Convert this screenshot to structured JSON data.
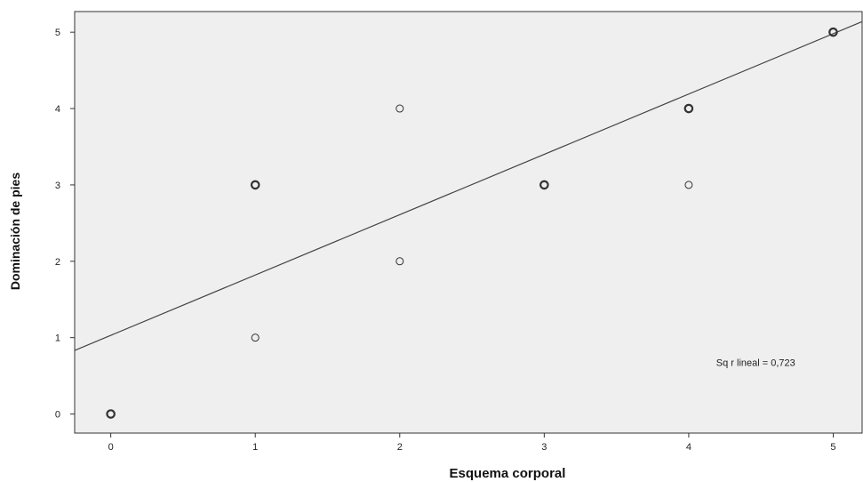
{
  "chart_data": {
    "type": "scatter",
    "xlabel": "Esquema corporal",
    "ylabel": "Dominación de pies",
    "xlim": [
      -0.25,
      5.2
    ],
    "ylim": [
      -0.25,
      5.27
    ],
    "x_ticks": [
      0,
      1,
      2,
      3,
      4,
      5
    ],
    "y_ticks": [
      0,
      1,
      2,
      3,
      4,
      5
    ],
    "grid": false,
    "points": [
      {
        "x": 0,
        "y": 0,
        "overlap": true
      },
      {
        "x": 1,
        "y": 1,
        "overlap": false
      },
      {
        "x": 1,
        "y": 3,
        "overlap": true
      },
      {
        "x": 2,
        "y": 2,
        "overlap": false
      },
      {
        "x": 2,
        "y": 4,
        "overlap": false
      },
      {
        "x": 3,
        "y": 3,
        "overlap": true
      },
      {
        "x": 4,
        "y": 3,
        "overlap": false
      },
      {
        "x": 4,
        "y": 4,
        "overlap": true
      },
      {
        "x": 5,
        "y": 5,
        "overlap": true
      }
    ],
    "fit_line": {
      "intercept": 1.03,
      "slope": 0.79
    },
    "annotation": "Sq r lineal = 0,723",
    "colors": {
      "plot_background": "#efefef",
      "marker_stroke": "#333333",
      "line": "#444444",
      "frame": "#333333"
    }
  }
}
